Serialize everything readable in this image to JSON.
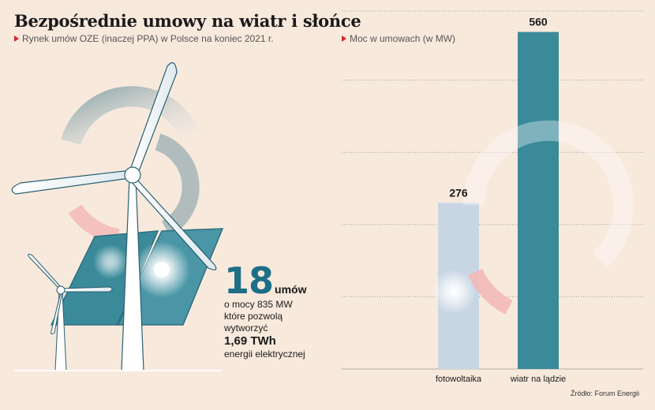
{
  "title": "Bezpośrednie umowy na wiatr i słońce",
  "subtitle": "Rynek umów OZE (inaczej PPA) w Polsce na koniec 2021 r.",
  "stat": {
    "number": "18",
    "unit": "umów",
    "line1": "o mocy 835 MW",
    "line2": "które pozwolą",
    "line3": "wytworzyć",
    "twh": "1,69 TWh",
    "line4": "energii elektrycznej"
  },
  "source": "Źródło: Forum Energii",
  "colors": {
    "background": "#f8e9dd",
    "accent_red": "#d9262e",
    "teal": "#3a8a9a",
    "light_blue": "#c8d6e4"
  },
  "chart_data": {
    "type": "bar",
    "title": "Moc w umowach (w MW)",
    "categories": [
      "fotowoltaika",
      "wiatr na lądzie"
    ],
    "values": [
      276,
      560
    ],
    "value_labels": [
      "276",
      "560"
    ],
    "bar_colors": [
      "#c8d6e4",
      "#3a8a9a"
    ],
    "ylim": [
      0,
      600
    ],
    "grid": true,
    "legend": "none"
  }
}
